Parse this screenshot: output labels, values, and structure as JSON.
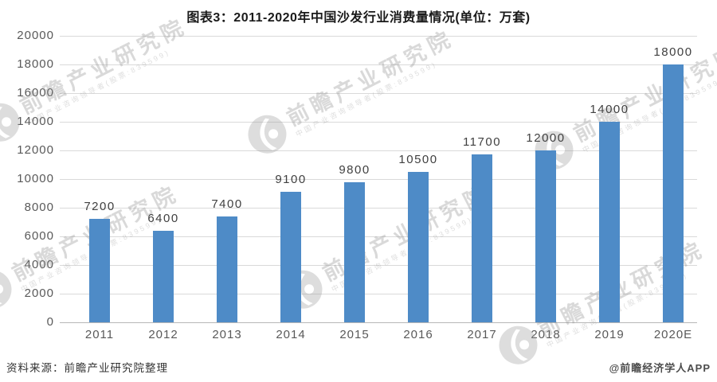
{
  "chart_data": {
    "type": "bar",
    "title": "图表3：2011-2020年中国沙发行业消费量情况(单位：万套)",
    "categories": [
      "2011",
      "2012",
      "2013",
      "2014",
      "2015",
      "2016",
      "2017",
      "2018",
      "2019",
      "2020E"
    ],
    "values": [
      7200,
      6400,
      7400,
      9100,
      9800,
      10500,
      11700,
      12000,
      14000,
      18000
    ],
    "unit": "万套",
    "xlabel": "",
    "ylabel": "",
    "ylim": [
      0,
      20000
    ],
    "ytick_step": 2000,
    "grid": true,
    "legend_position": "none",
    "bar_color": "#4E8BC7"
  },
  "watermark": {
    "logo": "qianzhan-swoosh-logo",
    "text": "前瞻产业研究院",
    "subtext": "中国产业咨询领导者(股票:839599)"
  },
  "footer": {
    "source": "资料来源：前瞻产业研究院整理",
    "credit": "@前瞻经济学人APP"
  },
  "colors": {
    "bar": "#4E8BC7",
    "grid_line": "#d9d9d9",
    "axis_line": "#b7b7b7",
    "value_label": "#404040",
    "tick_label": "#595959",
    "title": "#1a1a1a",
    "watermark": "#9a9a9a",
    "background": "#ffffff"
  }
}
